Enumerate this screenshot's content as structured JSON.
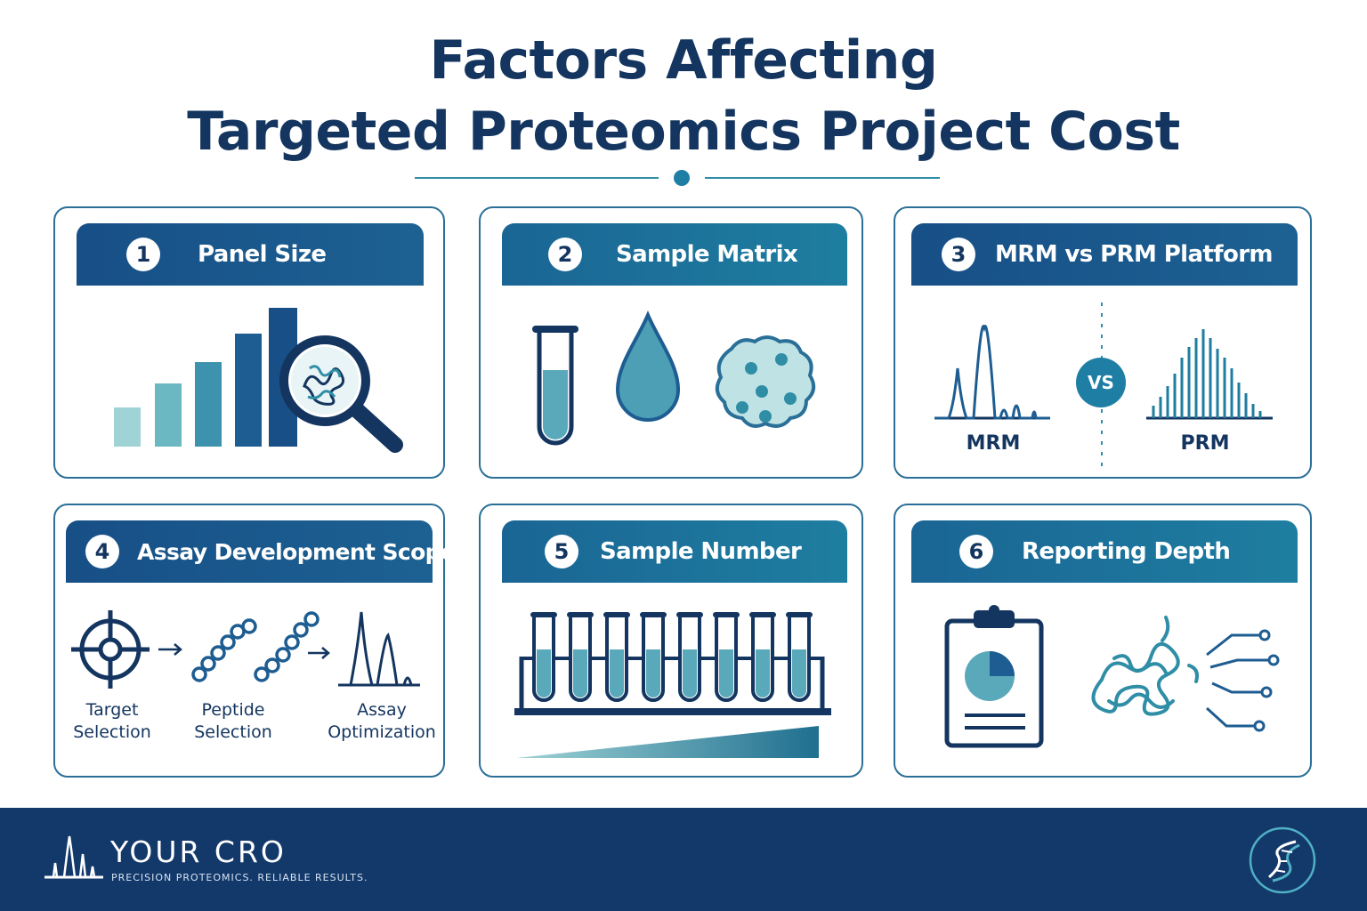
{
  "title": {
    "line1": "Factors Affecting",
    "line2": "Targeted Proteomics Project Cost"
  },
  "factors": [
    {
      "number": "1",
      "title": "Panel Size"
    },
    {
      "number": "2",
      "title": "Sample Matrix"
    },
    {
      "number": "3",
      "title": "MRM vs PRM Platform",
      "left_label": "MRM",
      "vs_label": "VS",
      "right_label": "PRM"
    },
    {
      "number": "4",
      "title": "Assay Development Scope",
      "steps": [
        {
          "line1": "Target",
          "line2": "Selection"
        },
        {
          "line1": "Peptide",
          "line2": "Selection"
        },
        {
          "line1": "Assay",
          "line2": "Optimization"
        }
      ]
    },
    {
      "number": "5",
      "title": "Sample Number"
    },
    {
      "number": "6",
      "title": "Reporting Depth"
    }
  ],
  "footer": {
    "brand": "YOUR CRO",
    "tagline": "PRECISION PROTEOMICS.  RELIABLE RESULTS."
  },
  "colors": {
    "navy": "#13355f",
    "header_blue": "#174f86",
    "teal": "#2f8ea6",
    "light_teal": "#9fd3d6",
    "footer_bg": "#13386a"
  },
  "icons": {
    "card1": [
      "bar-chart-icon",
      "magnifier-protein-icon"
    ],
    "card2": [
      "test-tube-icon",
      "droplet-icon",
      "tissue-cell-icon"
    ],
    "card3": [
      "mrm-spectrum-icon",
      "vs-badge-icon",
      "prm-spectrum-icon"
    ],
    "card4": [
      "crosshair-target-icon",
      "peptide-chain-icon",
      "peak-chromatogram-icon"
    ],
    "card5": [
      "tube-rack-icon",
      "increasing-wedge-icon"
    ],
    "card6": [
      "clipboard-report-icon",
      "protein-network-icon"
    ],
    "footer": [
      "spectrum-logo-icon",
      "dna-badge-icon"
    ]
  }
}
